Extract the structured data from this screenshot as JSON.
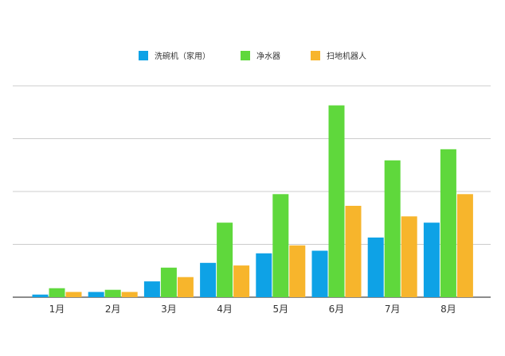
{
  "chart_data": {
    "type": "bar",
    "categories": [
      "1月",
      "2月",
      "3月",
      "4月",
      "5月",
      "6月",
      "7月",
      "8月"
    ],
    "series": [
      {
        "name": "洗碗机（家用）",
        "color": "#0ea2e6",
        "values": [
          0.5,
          1.0,
          3.0,
          6.5,
          8.3,
          8.8,
          11.3,
          14.1
        ]
      },
      {
        "name": "净水器",
        "color": "#5fd83c",
        "values": [
          1.7,
          1.4,
          5.6,
          14.1,
          19.5,
          36.3,
          25.9,
          28.0
        ]
      },
      {
        "name": "扫地机器人",
        "color": "#f7b52c",
        "values": [
          1.0,
          1.0,
          3.8,
          6.0,
          9.8,
          17.3,
          15.3,
          19.5
        ]
      }
    ],
    "ylim": [
      0,
      40
    ],
    "yticks": [
      0,
      10,
      20,
      30,
      40
    ],
    "ytick_labels_shown": false,
    "grid": true,
    "legend_position": "top-center"
  }
}
